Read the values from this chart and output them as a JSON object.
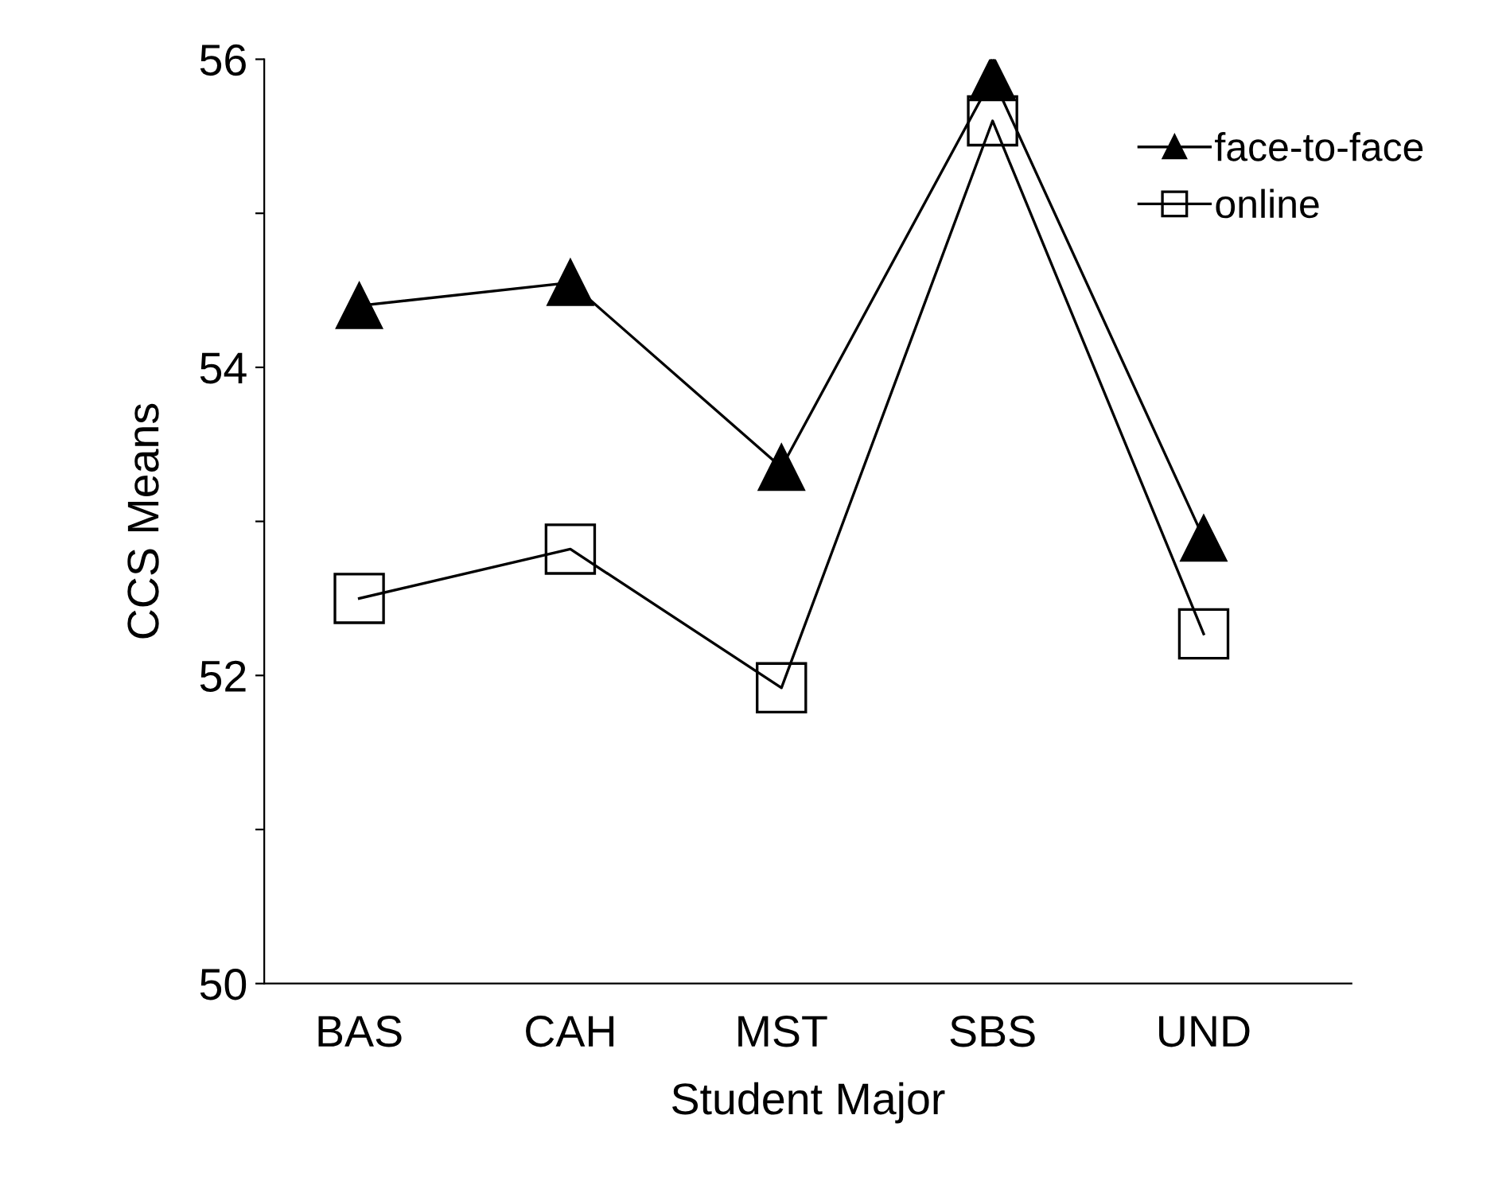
{
  "chart_data": {
    "type": "line",
    "xlabel": "Student Major",
    "ylabel": "CCS Means",
    "categories": [
      "BAS",
      "CAH",
      "MST",
      "SBS",
      "UND"
    ],
    "series": [
      {
        "name": "face-to-face",
        "color": "#000000",
        "marker": "triangle",
        "values": [
          54.4,
          54.55,
          53.35,
          55.88,
          52.89
        ]
      },
      {
        "name": "online",
        "color": "#000000",
        "marker": "square",
        "values": [
          52.5,
          52.82,
          51.92,
          55.6,
          52.27
        ]
      }
    ],
    "ylim": [
      50,
      56
    ],
    "yticks": [
      50,
      {
        "value": 51,
        "label": null
      },
      52,
      {
        "value": 53,
        "label": null
      },
      54,
      {
        "value": 55,
        "label": null
      },
      56
    ],
    "grid": false,
    "legend": "top right",
    "line_style": "solid"
  }
}
